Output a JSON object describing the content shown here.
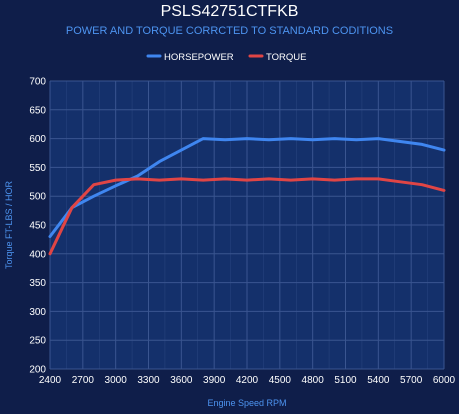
{
  "chart_data": {
    "type": "line",
    "title": "PSLS42751CTFKB",
    "subtitle": "POWER AND TORQUE CORRCTED TO STANDARD CODITIONS",
    "xlabel": "Engine Speed RPM",
    "ylabel": "Torque FT-LBS / HOR",
    "xlim": [
      2400,
      6000
    ],
    "ylim": [
      200,
      700
    ],
    "x_ticks": [
      2400,
      2700,
      3000,
      3300,
      3600,
      3900,
      4200,
      4500,
      4800,
      5100,
      5400,
      5700,
      6000
    ],
    "y_ticks": [
      200,
      250,
      300,
      350,
      400,
      450,
      500,
      550,
      600,
      650,
      700
    ],
    "legend_position": "top-center",
    "grid": true,
    "series": [
      {
        "name": "HORSEPOWER",
        "color": "#3f86f0",
        "points": [
          [
            2400,
            430
          ],
          [
            2600,
            480
          ],
          [
            2800,
            500
          ],
          [
            3000,
            518
          ],
          [
            3200,
            535
          ],
          [
            3400,
            560
          ],
          [
            3600,
            580
          ],
          [
            3800,
            600
          ],
          [
            4000,
            598
          ],
          [
            4200,
            600
          ],
          [
            4400,
            598
          ],
          [
            4600,
            600
          ],
          [
            4800,
            598
          ],
          [
            5000,
            600
          ],
          [
            5200,
            598
          ],
          [
            5400,
            600
          ],
          [
            5600,
            595
          ],
          [
            5800,
            590
          ],
          [
            6000,
            580
          ]
        ]
      },
      {
        "name": "TORQUE",
        "color": "#e04545",
        "points": [
          [
            2400,
            400
          ],
          [
            2600,
            480
          ],
          [
            2800,
            520
          ],
          [
            3000,
            528
          ],
          [
            3200,
            530
          ],
          [
            3400,
            528
          ],
          [
            3600,
            530
          ],
          [
            3800,
            528
          ],
          [
            4000,
            530
          ],
          [
            4200,
            528
          ],
          [
            4400,
            530
          ],
          [
            4600,
            528
          ],
          [
            4800,
            530
          ],
          [
            5000,
            528
          ],
          [
            5200,
            530
          ],
          [
            5400,
            530
          ],
          [
            5600,
            525
          ],
          [
            5800,
            520
          ],
          [
            6000,
            510
          ]
        ]
      }
    ]
  },
  "colors": {
    "background": "#0f1e4a",
    "plot_background": "#14306b",
    "grid": "#3a5590",
    "axis_text": "#ffffff",
    "label_text": "#4d94f0"
  }
}
